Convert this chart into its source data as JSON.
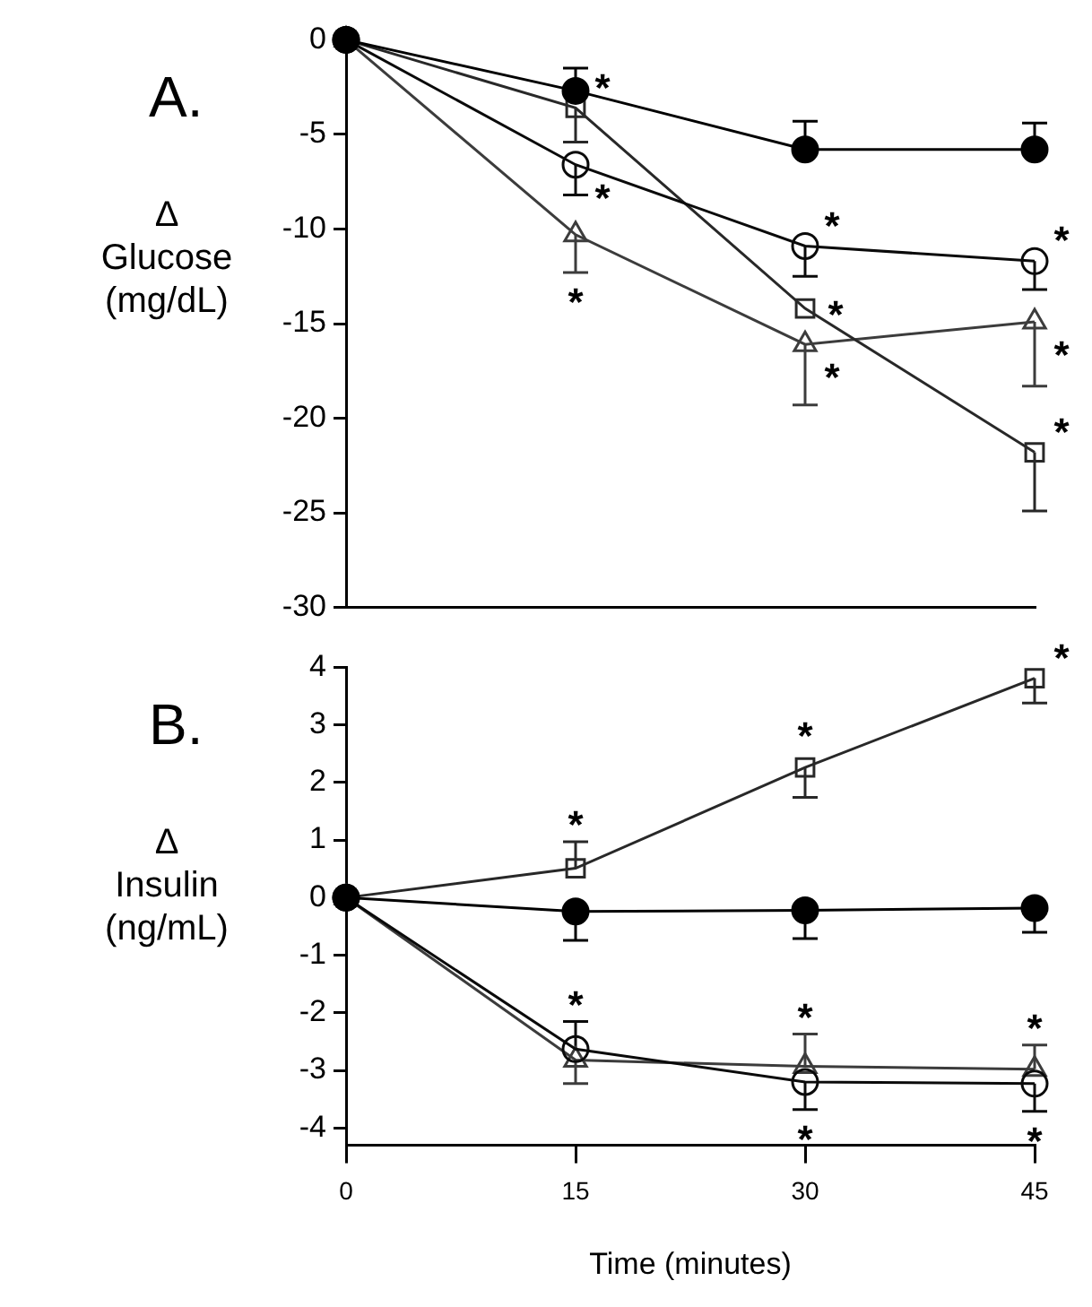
{
  "chart_data": [
    {
      "type": "line",
      "title": "A.",
      "ylabel": "Δ\nGlucose\n(mg/dL)",
      "xlim": [
        0,
        45
      ],
      "ylim": [
        -30,
        0
      ],
      "yticks": [
        0,
        -5,
        -10,
        -15,
        -20,
        -25,
        -30
      ],
      "tick_labels": "y",
      "grid": false,
      "legend": false,
      "x": [
        0,
        15,
        30,
        45
      ],
      "series": [
        {
          "color": "#000000",
          "marker": "circle",
          "values": [
            0,
            -2.7,
            -5.8,
            -5.8
          ],
          "errors": [
            null,
            [
              -2.7,
              -1.5
            ],
            [
              -5.8,
              -4.3
            ],
            [
              -5.8,
              -4.4
            ]
          ]
        },
        {
          "color": "#0a0a0a",
          "marker": "circle",
          "values": [
            0,
            -6.6,
            -10.9,
            -11.7
          ],
          "errors": [
            null,
            [
              -8.2,
              -6.6
            ],
            [
              -12.5,
              -10.9
            ],
            [
              -13.2,
              -11.7
            ]
          ]
        },
        {
          "color": "#282828",
          "marker": "square",
          "values": [
            0,
            -3.6,
            -14.2,
            -21.8
          ],
          "errors": [
            null,
            [
              -5.4,
              -3.6
            ],
            null,
            [
              -24.9,
              -21.8
            ]
          ]
        },
        {
          "color": "#3c3c3c",
          "marker": "triangle",
          "values": [
            0,
            -10.3,
            -16.1,
            -14.9
          ],
          "errors": [
            null,
            [
              -12.3,
              -10.3
            ],
            [
              -19.3,
              -16.1
            ],
            [
              -18.3,
              -14.9
            ]
          ]
        }
      ],
      "annotations": [
        {
          "text": "*",
          "x": 15,
          "y": -3.6
        },
        {
          "text": "*",
          "x": 15,
          "y": -6.6
        },
        {
          "text": "*",
          "x": 15,
          "y": -10.3
        },
        {
          "text": "*",
          "x": 30,
          "y": -10.9
        },
        {
          "text": "*",
          "x": 30,
          "y": -14.2
        },
        {
          "text": "*",
          "x": 30,
          "y": -16.1
        },
        {
          "text": "*",
          "x": 45,
          "y": -11.7
        },
        {
          "text": "*",
          "x": 45,
          "y": -14.9
        },
        {
          "text": "*",
          "x": 45,
          "y": -21.8
        }
      ]
    },
    {
      "type": "line",
      "title": "B.",
      "ylabel": "Δ\nInsulin\n(ng/mL)",
      "xlabel": "Time (minutes)",
      "xlim": [
        0,
        45
      ],
      "xticks": [
        0,
        15,
        30,
        45
      ],
      "ylim": [
        -4.3,
        4
      ],
      "yticks": [
        4,
        3,
        2,
        1,
        0,
        -1,
        -2,
        -3,
        -4
      ],
      "grid": false,
      "legend": false,
      "x": [
        0,
        15,
        30,
        45
      ],
      "series": [
        {
          "color": "#000000",
          "marker": "circle",
          "values": [
            0,
            -0.24,
            -0.22,
            -0.18
          ],
          "errors": [
            null,
            [
              -0.74,
              -0.24
            ],
            [
              -0.71,
              -0.22
            ],
            [
              -0.6,
              -0.18
            ]
          ]
        },
        {
          "color": "#0a0a0a",
          "marker": "circle",
          "values": [
            0,
            -2.63,
            -3.2,
            -3.23
          ],
          "errors": [
            null,
            [
              -2.63,
              -2.15
            ],
            [
              -3.68,
              -3.2
            ],
            [
              -3.71,
              -3.23
            ]
          ]
        },
        {
          "color": "#282828",
          "marker": "square",
          "values": [
            0,
            0.51,
            2.26,
            3.81
          ],
          "errors": [
            null,
            [
              0.51,
              0.97
            ],
            [
              1.74,
              2.26
            ],
            [
              3.38,
              3.81
            ]
          ]
        },
        {
          "color": "#3c3c3c",
          "marker": "triangle",
          "values": [
            0,
            -2.82,
            -2.93,
            -2.98
          ],
          "errors": [
            null,
            [
              -3.23,
              -2.82
            ],
            [
              -2.93,
              -2.37
            ],
            [
              -2.98,
              -2.56
            ]
          ]
        }
      ],
      "annotations": [
        {
          "text": "*",
          "x": 15,
          "y": 0.51
        },
        {
          "text": "*",
          "x": 30,
          "y": 2.26
        },
        {
          "text": "*",
          "x": 45,
          "y": 3.81
        },
        {
          "text": "*",
          "x": 15,
          "y": -2.63
        },
        {
          "text": "*",
          "x": 30,
          "y": -2.93
        },
        {
          "text": "*",
          "x": 45,
          "y": -2.98
        },
        {
          "text": "*",
          "x": 30,
          "y": -3.2
        },
        {
          "text": "*",
          "x": 45,
          "y": -3.23
        }
      ]
    }
  ]
}
